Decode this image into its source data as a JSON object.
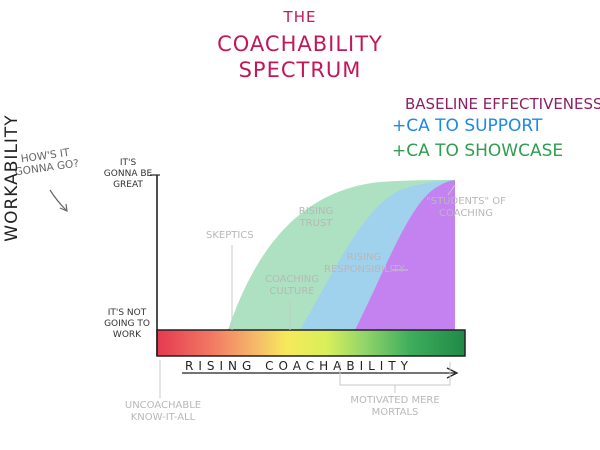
{
  "title": {
    "line1": "THE",
    "line2": "COACHABILITY",
    "line3": "SPECTRUM"
  },
  "legend": {
    "baseline": "BASELINE EFFECTIVENESS",
    "support": "+CA TO SUPPORT",
    "showcase": "+CA TO SHOWCASE"
  },
  "colors": {
    "baseline": "#8e1f63",
    "support": "#1e88e5",
    "showcase": "#2e9e4f",
    "green_area": "#9fdcb7",
    "blue_area": "#9ecff2",
    "purple_area": "#c67df0"
  },
  "question": "HOW'S IT GONNA GO?",
  "y_axis": {
    "label": "WORKABILITY",
    "top_label": "IT'S GONNA BE GREAT",
    "bottom_label": "IT'S NOT GOING TO WORK"
  },
  "x_axis": {
    "label": "RISING COACHABILITY"
  },
  "annotations": {
    "skeptics": "SKEPTICS",
    "rising_trust": "RISING TRUST",
    "coaching_culture": "COACHING CULTURE",
    "rising_responsibility": "RISING RESPONSIBILITY",
    "students": "\"STUDENTS\" OF COACHING",
    "uncoachable": "UNCOACHABLE KNOW-IT-ALL",
    "motivated": "MOTIVATED MERE MORTALS"
  }
}
